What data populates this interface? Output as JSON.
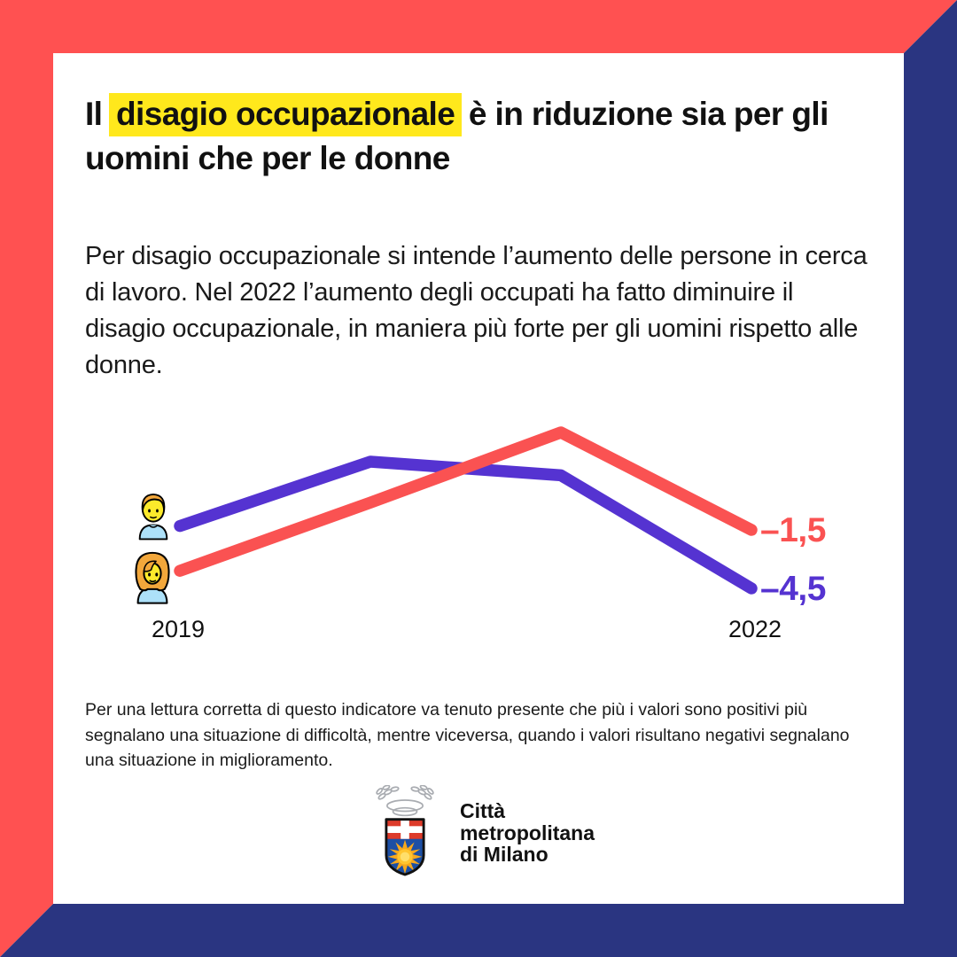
{
  "colors": {
    "frame_red": "#FF5151",
    "frame_navy": "#2A3581",
    "highlight_yellow": "#FFE81C",
    "line_purple": "#5533D1",
    "line_coral": "#FA5252"
  },
  "title": {
    "prefix": "Il ",
    "highlight": "disagio occupazionale",
    "suffix": " è in riduzione sia per gli uomini che per le donne"
  },
  "intro": "Per disagio occupazionale si intende l’aumento delle persone in cerca di lavoro. Nel 2022 l’aumento degli occupati ha fatto diminuire il disagio occupazionale, in maniera più forte per gli uomini rispetto alle donne.",
  "chart_data": {
    "type": "line",
    "title": "",
    "x": [
      2019,
      2020,
      2021,
      2022
    ],
    "x_tick_labels": [
      "2019",
      "2022"
    ],
    "xlabel": "",
    "ylabel": "",
    "ylim": [
      -5.5,
      4.5
    ],
    "grid": false,
    "legend_position": "icons-at-line-start",
    "series": [
      {
        "name": "uomini",
        "icon": "man-icon",
        "color": "#5533D1",
        "values": [
          -1.3,
          2.0,
          1.3,
          -4.5
        ],
        "end_label": "–4,5"
      },
      {
        "name": "donne",
        "icon": "woman-icon",
        "color": "#FA5252",
        "values": [
          -3.6,
          -0.1,
          3.5,
          -1.5
        ],
        "end_label": "–1,5"
      }
    ]
  },
  "footnote": "Per una lettura corretta di questo indicatore va tenuto presente che più i valori sono positivi più segnalano una situazione di difficoltà, mentre viceversa, quando i valori risultano negativi segnalano una situazione in miglioramento.",
  "logo": {
    "line1": "Città",
    "line2": "metropolitana",
    "line3": "di Milano"
  }
}
